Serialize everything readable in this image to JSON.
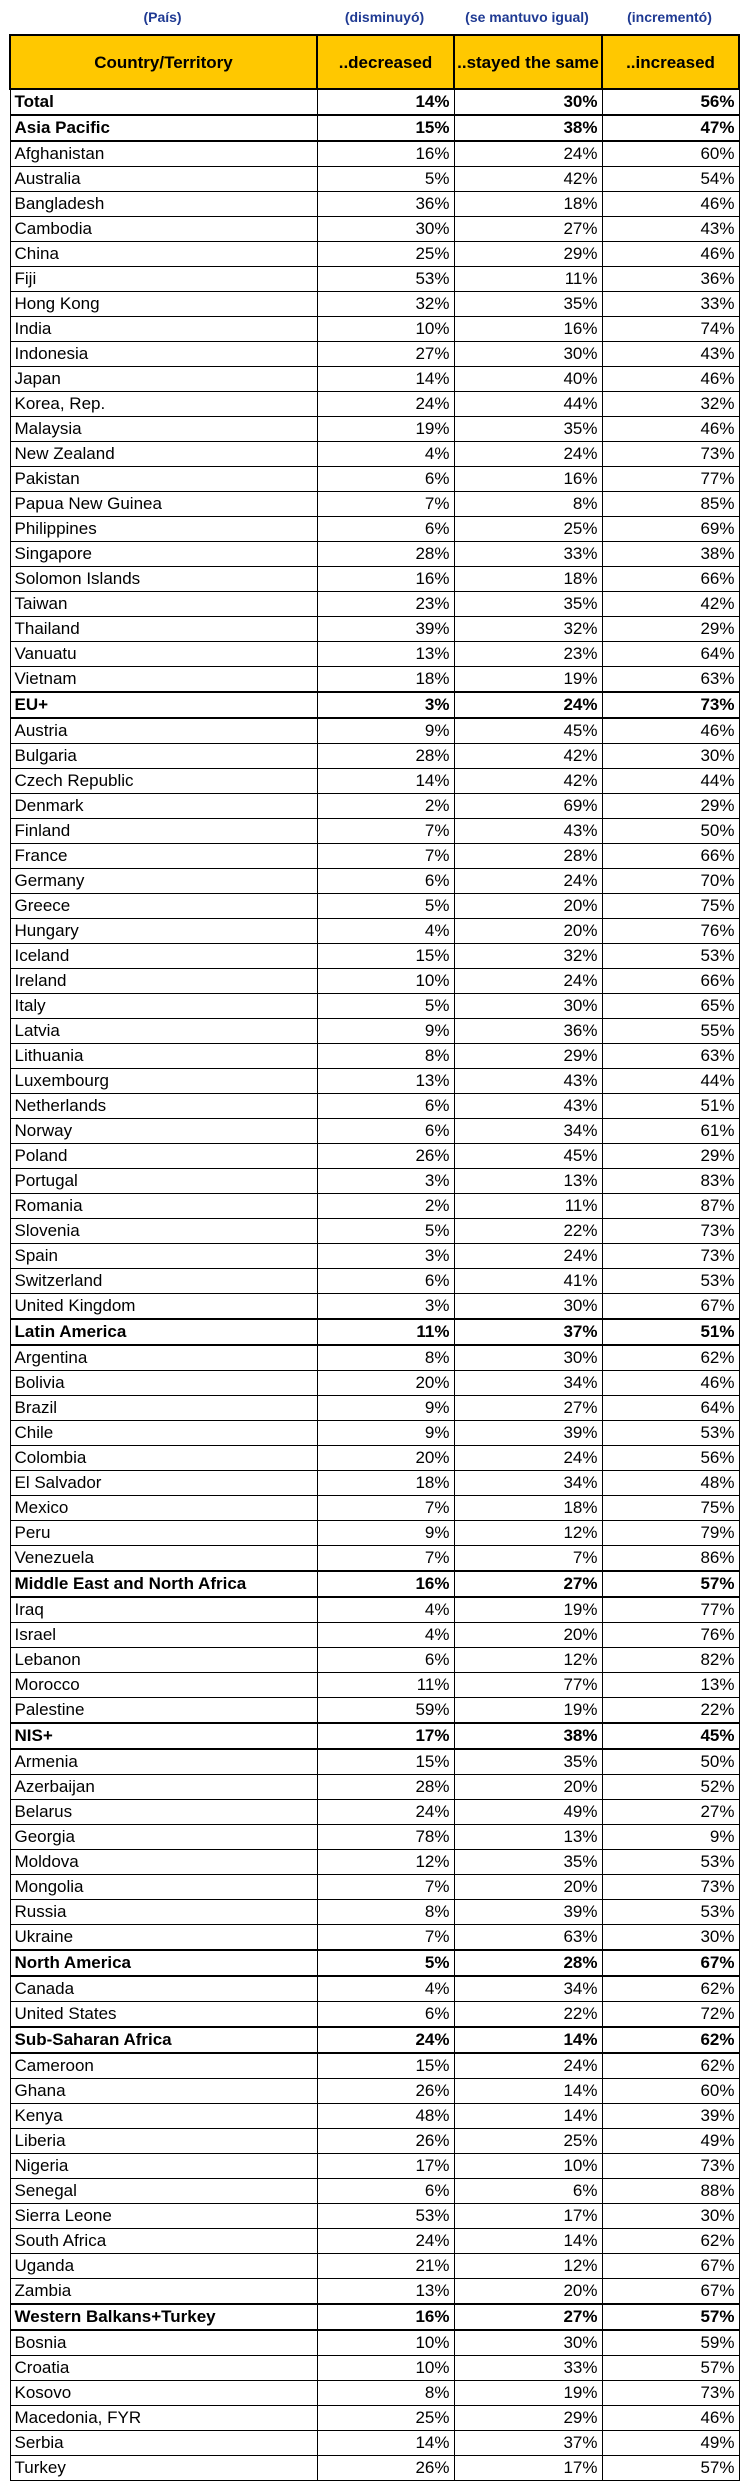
{
  "spanish_headers": [
    "(País)",
    "(disminuyó)",
    "(se mantuvo igual)",
    "(incrementó)"
  ],
  "columns": [
    "Country/Territory",
    "..decreased",
    "..stayed the same",
    "..increased"
  ],
  "rows": [
    {
      "name": "Total",
      "dec": "14%",
      "same": "30%",
      "inc": "56%",
      "bold": true
    },
    {
      "name": "Asia Pacific",
      "dec": "15%",
      "same": "38%",
      "inc": "47%",
      "bold": true
    },
    {
      "name": "Afghanistan",
      "dec": "16%",
      "same": "24%",
      "inc": "60%"
    },
    {
      "name": "Australia",
      "dec": "5%",
      "same": "42%",
      "inc": "54%"
    },
    {
      "name": "Bangladesh",
      "dec": "36%",
      "same": "18%",
      "inc": "46%"
    },
    {
      "name": "Cambodia",
      "dec": "30%",
      "same": "27%",
      "inc": "43%"
    },
    {
      "name": "China",
      "dec": "25%",
      "same": "29%",
      "inc": "46%"
    },
    {
      "name": "Fiji",
      "dec": "53%",
      "same": "11%",
      "inc": "36%"
    },
    {
      "name": "Hong Kong",
      "dec": "32%",
      "same": "35%",
      "inc": "33%"
    },
    {
      "name": "India",
      "dec": "10%",
      "same": "16%",
      "inc": "74%"
    },
    {
      "name": "Indonesia",
      "dec": "27%",
      "same": "30%",
      "inc": "43%"
    },
    {
      "name": "Japan",
      "dec": "14%",
      "same": "40%",
      "inc": "46%"
    },
    {
      "name": "Korea, Rep.",
      "dec": "24%",
      "same": "44%",
      "inc": "32%"
    },
    {
      "name": "Malaysia",
      "dec": "19%",
      "same": "35%",
      "inc": "46%"
    },
    {
      "name": "New Zealand",
      "dec": "4%",
      "same": "24%",
      "inc": "73%"
    },
    {
      "name": "Pakistan",
      "dec": "6%",
      "same": "16%",
      "inc": "77%"
    },
    {
      "name": "Papua New Guinea",
      "dec": "7%",
      "same": "8%",
      "inc": "85%"
    },
    {
      "name": "Philippines",
      "dec": "6%",
      "same": "25%",
      "inc": "69%"
    },
    {
      "name": "Singapore",
      "dec": "28%",
      "same": "33%",
      "inc": "38%"
    },
    {
      "name": "Solomon Islands",
      "dec": "16%",
      "same": "18%",
      "inc": "66%"
    },
    {
      "name": "Taiwan",
      "dec": "23%",
      "same": "35%",
      "inc": "42%"
    },
    {
      "name": "Thailand",
      "dec": "39%",
      "same": "32%",
      "inc": "29%"
    },
    {
      "name": "Vanuatu",
      "dec": "13%",
      "same": "23%",
      "inc": "64%"
    },
    {
      "name": "Vietnam",
      "dec": "18%",
      "same": "19%",
      "inc": "63%"
    },
    {
      "name": "EU+",
      "dec": "3%",
      "same": "24%",
      "inc": "73%",
      "bold": true
    },
    {
      "name": "Austria",
      "dec": "9%",
      "same": "45%",
      "inc": "46%"
    },
    {
      "name": "Bulgaria",
      "dec": "28%",
      "same": "42%",
      "inc": "30%"
    },
    {
      "name": "Czech Republic",
      "dec": "14%",
      "same": "42%",
      "inc": "44%"
    },
    {
      "name": "Denmark",
      "dec": "2%",
      "same": "69%",
      "inc": "29%"
    },
    {
      "name": "Finland",
      "dec": "7%",
      "same": "43%",
      "inc": "50%"
    },
    {
      "name": "France",
      "dec": "7%",
      "same": "28%",
      "inc": "66%"
    },
    {
      "name": "Germany",
      "dec": "6%",
      "same": "24%",
      "inc": "70%"
    },
    {
      "name": "Greece",
      "dec": "5%",
      "same": "20%",
      "inc": "75%"
    },
    {
      "name": "Hungary",
      "dec": "4%",
      "same": "20%",
      "inc": "76%"
    },
    {
      "name": "Iceland",
      "dec": "15%",
      "same": "32%",
      "inc": "53%"
    },
    {
      "name": "Ireland",
      "dec": "10%",
      "same": "24%",
      "inc": "66%"
    },
    {
      "name": "Italy",
      "dec": "5%",
      "same": "30%",
      "inc": "65%"
    },
    {
      "name": "Latvia",
      "dec": "9%",
      "same": "36%",
      "inc": "55%"
    },
    {
      "name": "Lithuania",
      "dec": "8%",
      "same": "29%",
      "inc": "63%"
    },
    {
      "name": "Luxembourg",
      "dec": "13%",
      "same": "43%",
      "inc": "44%"
    },
    {
      "name": "Netherlands",
      "dec": "6%",
      "same": "43%",
      "inc": "51%"
    },
    {
      "name": "Norway",
      "dec": "6%",
      "same": "34%",
      "inc": "61%"
    },
    {
      "name": "Poland",
      "dec": "26%",
      "same": "45%",
      "inc": "29%"
    },
    {
      "name": "Portugal",
      "dec": "3%",
      "same": "13%",
      "inc": "83%"
    },
    {
      "name": "Romania",
      "dec": "2%",
      "same": "11%",
      "inc": "87%"
    },
    {
      "name": "Slovenia",
      "dec": "5%",
      "same": "22%",
      "inc": "73%"
    },
    {
      "name": "Spain",
      "dec": "3%",
      "same": "24%",
      "inc": "73%"
    },
    {
      "name": "Switzerland",
      "dec": "6%",
      "same": "41%",
      "inc": "53%"
    },
    {
      "name": "United Kingdom",
      "dec": "3%",
      "same": "30%",
      "inc": "67%"
    },
    {
      "name": "Latin America",
      "dec": "11%",
      "same": "37%",
      "inc": "51%",
      "bold": true
    },
    {
      "name": "Argentina",
      "dec": "8%",
      "same": "30%",
      "inc": "62%"
    },
    {
      "name": "Bolivia",
      "dec": "20%",
      "same": "34%",
      "inc": "46%"
    },
    {
      "name": "Brazil",
      "dec": "9%",
      "same": "27%",
      "inc": "64%"
    },
    {
      "name": "Chile",
      "dec": "9%",
      "same": "39%",
      "inc": "53%"
    },
    {
      "name": "Colombia",
      "dec": "20%",
      "same": "24%",
      "inc": "56%"
    },
    {
      "name": "El Salvador",
      "dec": "18%",
      "same": "34%",
      "inc": "48%"
    },
    {
      "name": "Mexico",
      "dec": "7%",
      "same": "18%",
      "inc": "75%"
    },
    {
      "name": "Peru",
      "dec": "9%",
      "same": "12%",
      "inc": "79%"
    },
    {
      "name": "Venezuela",
      "dec": "7%",
      "same": "7%",
      "inc": "86%"
    },
    {
      "name": "Middle East and North Africa",
      "dec": "16%",
      "same": "27%",
      "inc": "57%",
      "bold": true
    },
    {
      "name": "Iraq",
      "dec": "4%",
      "same": "19%",
      "inc": "77%"
    },
    {
      "name": "Israel",
      "dec": "4%",
      "same": "20%",
      "inc": "76%"
    },
    {
      "name": "Lebanon",
      "dec": "6%",
      "same": "12%",
      "inc": "82%"
    },
    {
      "name": "Morocco",
      "dec": "11%",
      "same": "77%",
      "inc": "13%"
    },
    {
      "name": "Palestine",
      "dec": "59%",
      "same": "19%",
      "inc": "22%"
    },
    {
      "name": "NIS+",
      "dec": "17%",
      "same": "38%",
      "inc": "45%",
      "bold": true
    },
    {
      "name": "Armenia",
      "dec": "15%",
      "same": "35%",
      "inc": "50%"
    },
    {
      "name": "Azerbaijan",
      "dec": "28%",
      "same": "20%",
      "inc": "52%"
    },
    {
      "name": "Belarus",
      "dec": "24%",
      "same": "49%",
      "inc": "27%"
    },
    {
      "name": "Georgia",
      "dec": "78%",
      "same": "13%",
      "inc": "9%"
    },
    {
      "name": "Moldova",
      "dec": "12%",
      "same": "35%",
      "inc": "53%"
    },
    {
      "name": "Mongolia",
      "dec": "7%",
      "same": "20%",
      "inc": "73%"
    },
    {
      "name": "Russia",
      "dec": "8%",
      "same": "39%",
      "inc": "53%"
    },
    {
      "name": "Ukraine",
      "dec": "7%",
      "same": "63%",
      "inc": "30%"
    },
    {
      "name": "North America",
      "dec": "5%",
      "same": "28%",
      "inc": "67%",
      "bold": true
    },
    {
      "name": "Canada",
      "dec": "4%",
      "same": "34%",
      "inc": "62%"
    },
    {
      "name": "United States",
      "dec": "6%",
      "same": "22%",
      "inc": "72%"
    },
    {
      "name": "Sub-Saharan Africa",
      "dec": "24%",
      "same": "14%",
      "inc": "62%",
      "bold": true
    },
    {
      "name": "Cameroon",
      "dec": "15%",
      "same": "24%",
      "inc": "62%"
    },
    {
      "name": "Ghana",
      "dec": "26%",
      "same": "14%",
      "inc": "60%"
    },
    {
      "name": "Kenya",
      "dec": "48%",
      "same": "14%",
      "inc": "39%"
    },
    {
      "name": "Liberia",
      "dec": "26%",
      "same": "25%",
      "inc": "49%"
    },
    {
      "name": "Nigeria",
      "dec": "17%",
      "same": "10%",
      "inc": "73%"
    },
    {
      "name": "Senegal",
      "dec": "6%",
      "same": "6%",
      "inc": "88%"
    },
    {
      "name": "Sierra Leone",
      "dec": "53%",
      "same": "17%",
      "inc": "30%"
    },
    {
      "name": "South Africa",
      "dec": "24%",
      "same": "14%",
      "inc": "62%"
    },
    {
      "name": "Uganda",
      "dec": "21%",
      "same": "12%",
      "inc": "67%"
    },
    {
      "name": "Zambia",
      "dec": "13%",
      "same": "20%",
      "inc": "67%"
    },
    {
      "name": "Western Balkans+Turkey",
      "dec": "16%",
      "same": "27%",
      "inc": "57%",
      "bold": true
    },
    {
      "name": "Bosnia",
      "dec": "10%",
      "same": "30%",
      "inc": "59%"
    },
    {
      "name": "Croatia",
      "dec": "10%",
      "same": "33%",
      "inc": "57%"
    },
    {
      "name": "Kosovo",
      "dec": "8%",
      "same": "19%",
      "inc": "73%"
    },
    {
      "name": "Macedonia, FYR",
      "dec": "25%",
      "same": "29%",
      "inc": "46%"
    },
    {
      "name": "Serbia",
      "dec": "14%",
      "same": "37%",
      "inc": "49%"
    },
    {
      "name": "Turkey",
      "dec": "26%",
      "same": "17%",
      "inc": "57%"
    }
  ]
}
